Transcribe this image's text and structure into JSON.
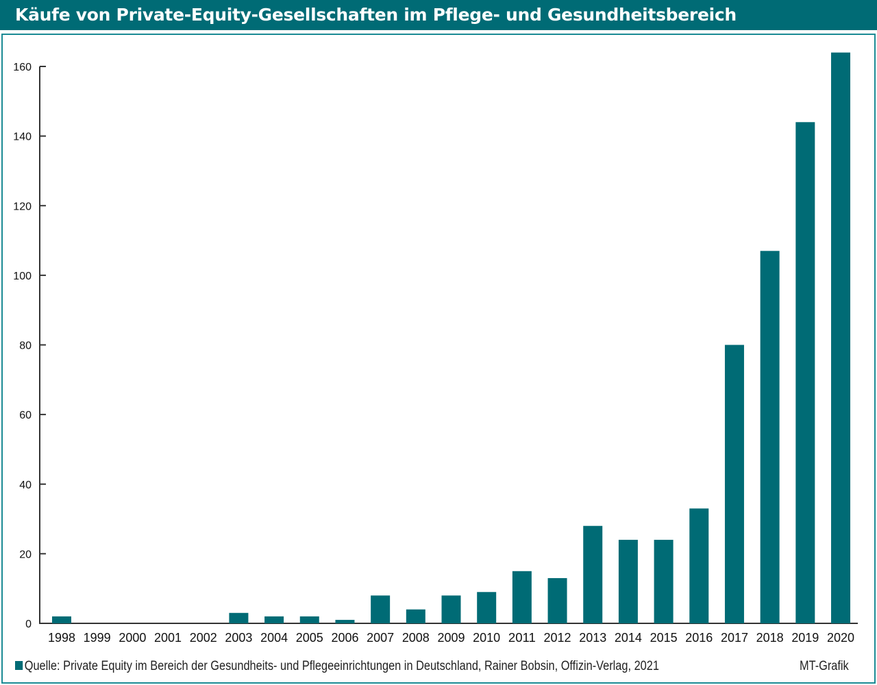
{
  "chart_data": {
    "type": "bar",
    "title": "Käufe von Private-Equity-Gesellschaften im Pflege- und Gesundheitsbereich",
    "xlabel": "",
    "ylabel": "",
    "ylim": [
      0,
      160
    ],
    "yticks": [
      0,
      20,
      40,
      60,
      80,
      100,
      120,
      140,
      160
    ],
    "categories": [
      "1998",
      "1999",
      "2000",
      "2001",
      "2002",
      "2003",
      "2004",
      "2005",
      "2006",
      "2007",
      "2008",
      "2009",
      "2010",
      "2011",
      "2012",
      "2013",
      "2014",
      "2015",
      "2016",
      "2017",
      "2018",
      "2019",
      "2020"
    ],
    "values": [
      2,
      0,
      0,
      0,
      0,
      3,
      2,
      2,
      1,
      8,
      4,
      8,
      9,
      15,
      13,
      28,
      24,
      24,
      33,
      80,
      107,
      144,
      164
    ],
    "grid": false,
    "bar_color": "#006b75"
  },
  "footer": {
    "source": "Quelle: Private Equity im Bereich der Gesundheits- und Pflegeeinrichtungen in Deutschland, Rainer Bobsin, Offizin-Verlag, 2021",
    "credit": "MT-Grafik"
  }
}
